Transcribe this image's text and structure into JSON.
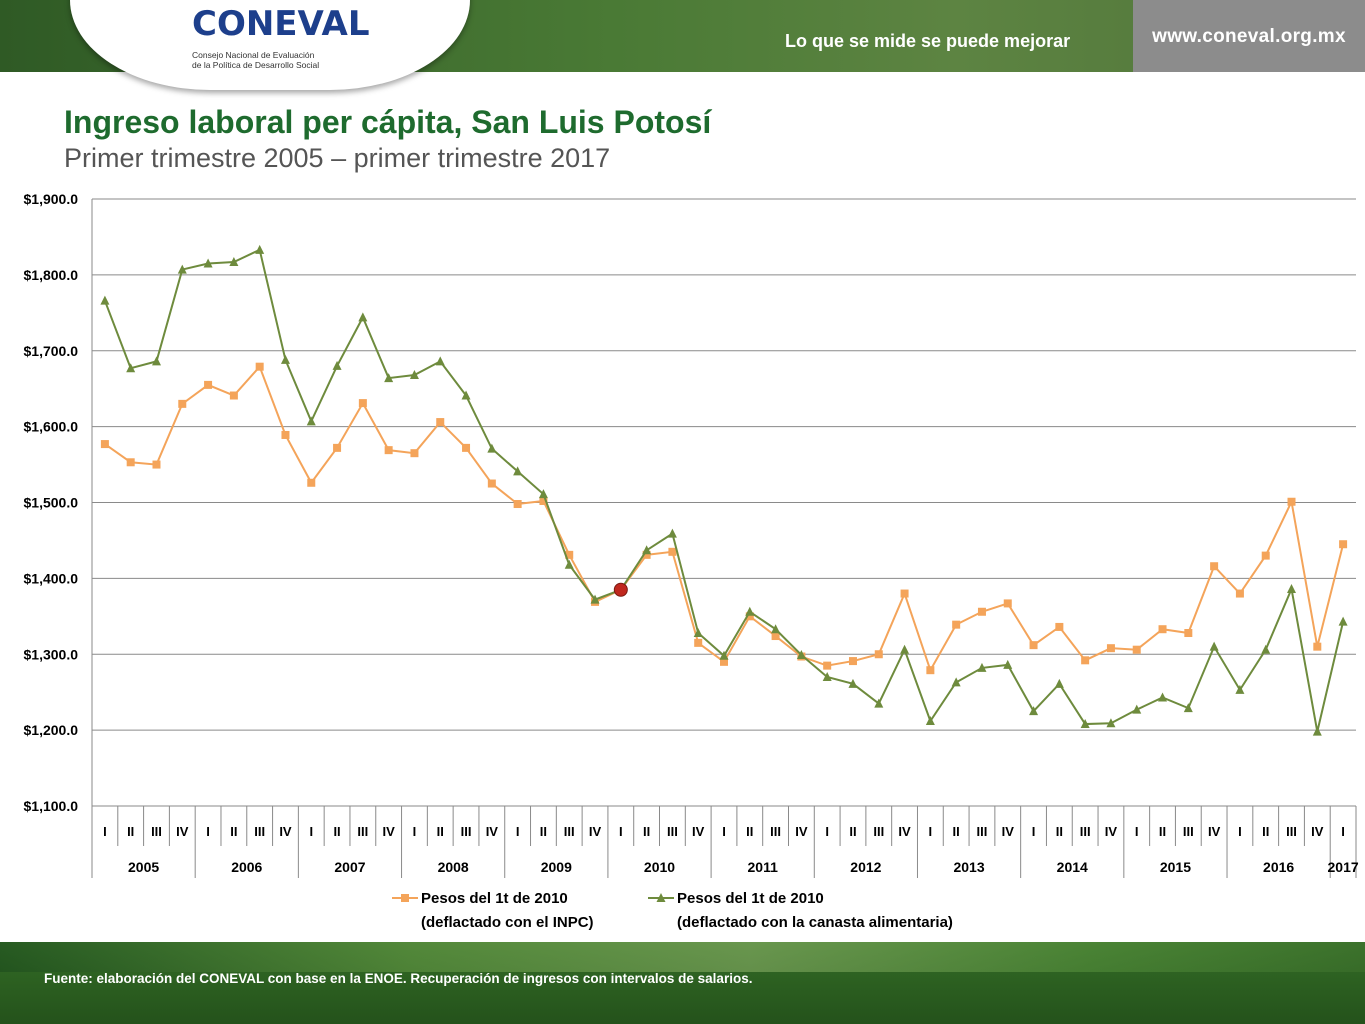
{
  "header": {
    "logo_text": "CONEVAL",
    "logo_sub_line1": "Consejo Nacional de Evaluación",
    "logo_sub_line2": "de la Política de Desarrollo Social",
    "slogan": "Lo que se mide se puede mejorar",
    "url": "www.coneval.org.mx"
  },
  "footer": {
    "source": "Fuente: elaboración del CONEVAL con base en la ENOE. Recuperación de ingresos con intervalos de salarios."
  },
  "chart_data": {
    "type": "line",
    "title": "Ingreso laboral per cápita, San Luis Potosí",
    "subtitle": "Primer trimestre 2005 – primer trimestre 2017",
    "ylim": [
      1100,
      1900
    ],
    "yticks": [
      1100,
      1200,
      1300,
      1400,
      1500,
      1600,
      1700,
      1800,
      1900
    ],
    "ytick_labels": [
      "$1,100.0",
      "$1,200.0",
      "$1,300.0",
      "$1,400.0",
      "$1,500.0",
      "$1,600.0",
      "$1,700.0",
      "$1,800.0",
      "$1,900.0"
    ],
    "grid": true,
    "legend_position": "bottom",
    "quarters": [
      "I",
      "II",
      "III",
      "IV",
      "I",
      "II",
      "III",
      "IV",
      "I",
      "II",
      "III",
      "IV",
      "I",
      "II",
      "III",
      "IV",
      "I",
      "II",
      "III",
      "IV",
      "I",
      "II",
      "III",
      "IV",
      "I",
      "II",
      "III",
      "IV",
      "I",
      "II",
      "III",
      "IV",
      "I",
      "II",
      "III",
      "IV",
      "I",
      "II",
      "III",
      "IV",
      "I",
      "II",
      "III",
      "IV",
      "I",
      "II",
      "III",
      "IV",
      "I"
    ],
    "years": [
      "2005",
      "2006",
      "2007",
      "2008",
      "2009",
      "2010",
      "2011",
      "2012",
      "2013",
      "2014",
      "2015",
      "2016",
      "2017"
    ],
    "highlight_index": 20,
    "highlight_value": 1385,
    "series": [
      {
        "name": "Pesos del 1t de 2010 (deflactado con el INPC)",
        "legend_line1": "Pesos del 1t de 2010",
        "legend_line2": "(deflactado con el INPC)",
        "color": "#f4a45a",
        "marker": "square",
        "values": [
          1577,
          1553,
          1550,
          1630,
          1655,
          1641,
          1679,
          1589,
          1526,
          1572,
          1631,
          1569,
          1565,
          1606,
          1572,
          1525,
          1498,
          1502,
          1431,
          1369,
          1385,
          1431,
          1435,
          1315,
          1290,
          1350,
          1324,
          1297,
          1285,
          1291,
          1300,
          1380,
          1279,
          1339,
          1356,
          1367,
          1312,
          1336,
          1292,
          1308,
          1306,
          1333,
          1328,
          1416,
          1380,
          1430,
          1501,
          1310,
          1445
        ]
      },
      {
        "name": "Pesos del 1t de 2010 (deflactado con la canasta alimentaria)",
        "legend_line1": "Pesos del 1t de 2010",
        "legend_line2": "(deflactado con la canasta alimentaria)",
        "color": "#6e8b3d",
        "marker": "triangle",
        "values": [
          1766,
          1677,
          1686,
          1807,
          1815,
          1817,
          1833,
          1688,
          1607,
          1680,
          1744,
          1664,
          1668,
          1686,
          1641,
          1571,
          1541,
          1511,
          1418,
          1372,
          1385,
          1437,
          1459,
          1328,
          1298,
          1356,
          1333,
          1299,
          1270,
          1261,
          1235,
          1306,
          1212,
          1263,
          1282,
          1286,
          1225,
          1261,
          1208,
          1209,
          1227,
          1243,
          1229,
          1310,
          1253,
          1306,
          1386,
          1198,
          1343
        ]
      }
    ]
  }
}
